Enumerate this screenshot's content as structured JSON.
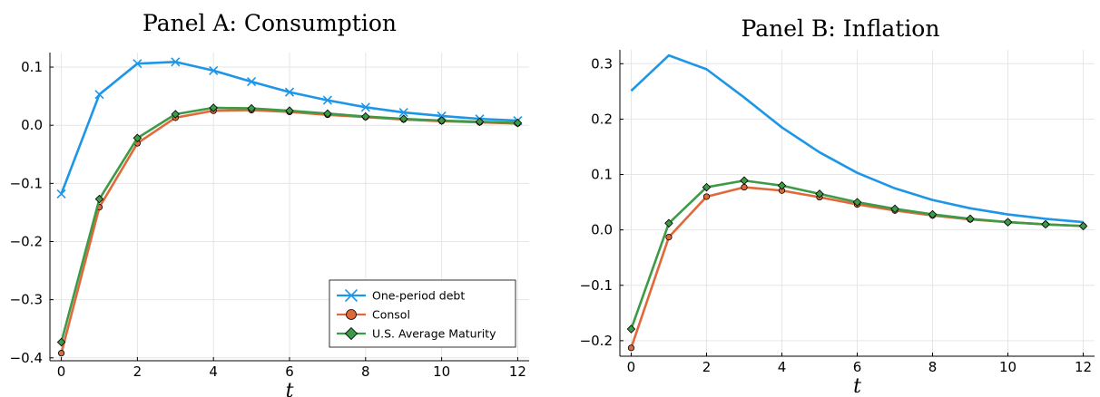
{
  "colors": {
    "one_period": "#1e96e8",
    "consol": "#e0693a",
    "us_avg": "#3d9a47"
  },
  "chart_data": [
    {
      "type": "line",
      "title": "Panel A: Consumption",
      "xlabel": "t",
      "ylabel": "",
      "xlim": [
        -0.3,
        12.3
      ],
      "ylim": [
        -0.405,
        0.125
      ],
      "xticks": [
        0,
        2,
        4,
        6,
        8,
        10,
        12
      ],
      "xtick_labels": [
        "0",
        "2",
        "4",
        "6",
        "8",
        "10",
        "12"
      ],
      "yticks": [
        -0.4,
        -0.3,
        -0.2,
        -0.1,
        0.0,
        0.1
      ],
      "ytick_labels": [
        "−0.4",
        "−0.3",
        "−0.2",
        "−0.1",
        "0.0",
        "0.1"
      ],
      "grid": true,
      "legend": "bottom-right",
      "x": [
        0,
        1,
        2,
        3,
        4,
        5,
        6,
        7,
        8,
        9,
        10,
        11,
        12
      ],
      "series": [
        {
          "name": "One-period debt",
          "marker": "x",
          "color_key": "one_period",
          "values": [
            -0.118,
            0.053,
            0.106,
            0.109,
            0.094,
            0.075,
            0.057,
            0.043,
            0.031,
            0.022,
            0.016,
            0.011,
            0.008
          ]
        },
        {
          "name": "Consol",
          "marker": "circle",
          "color_key": "consol",
          "values": [
            -0.392,
            -0.141,
            -0.031,
            0.013,
            0.025,
            0.026,
            0.023,
            0.018,
            0.014,
            0.01,
            0.007,
            0.005,
            0.003
          ]
        },
        {
          "name": "U.S. Average Maturity",
          "marker": "diamond",
          "color_key": "us_avg",
          "values": [
            -0.373,
            -0.127,
            -0.022,
            0.019,
            0.03,
            0.029,
            0.025,
            0.02,
            0.015,
            0.011,
            0.008,
            0.006,
            0.004
          ]
        }
      ]
    },
    {
      "type": "line",
      "title": "Panel B: Inflation",
      "xlabel": "t",
      "ylabel": "",
      "xlim": [
        -0.3,
        12.3
      ],
      "ylim": [
        -0.228,
        0.325
      ],
      "xticks": [
        0,
        2,
        4,
        6,
        8,
        10,
        12
      ],
      "xtick_labels": [
        "0",
        "2",
        "4",
        "6",
        "8",
        "10",
        "12"
      ],
      "yticks": [
        -0.2,
        -0.1,
        0.0,
        0.1,
        0.2,
        0.3
      ],
      "ytick_labels": [
        "−0.2",
        "−0.1",
        "0.0",
        "0.1",
        "0.2",
        "0.3"
      ],
      "grid": true,
      "legend": "none",
      "x": [
        0,
        1,
        2,
        3,
        4,
        5,
        6,
        7,
        8,
        9,
        10,
        11,
        12
      ],
      "series": [
        {
          "name": "One-period debt",
          "marker": "none",
          "color_key": "one_period",
          "values": [
            0.251,
            0.315,
            0.29,
            0.239,
            0.185,
            0.14,
            0.103,
            0.075,
            0.054,
            0.039,
            0.028,
            0.02,
            0.014
          ]
        },
        {
          "name": "Consol",
          "marker": "circle",
          "color_key": "consol",
          "values": [
            -0.213,
            -0.013,
            0.06,
            0.077,
            0.071,
            0.059,
            0.046,
            0.035,
            0.026,
            0.019,
            0.014,
            0.01,
            0.007
          ]
        },
        {
          "name": "U.S. Average Maturity",
          "marker": "diamond",
          "color_key": "us_avg",
          "values": [
            -0.179,
            0.012,
            0.077,
            0.089,
            0.08,
            0.065,
            0.05,
            0.038,
            0.028,
            0.02,
            0.014,
            0.01,
            0.007
          ]
        }
      ]
    }
  ]
}
